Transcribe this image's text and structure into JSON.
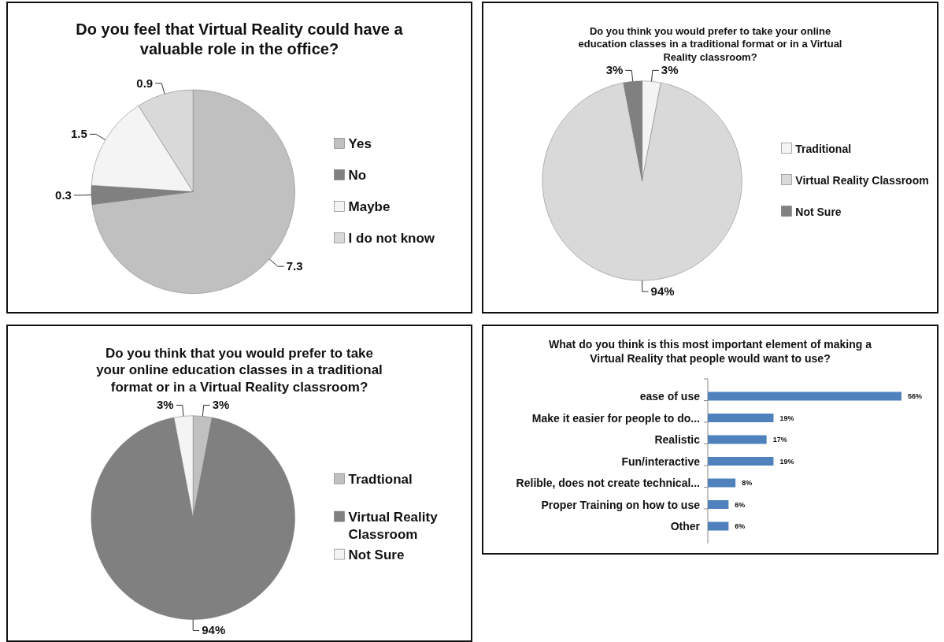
{
  "chart_data": [
    {
      "type": "pie",
      "title": "Do you feel that Virtual Reality could have a valuable role in the office?",
      "categories": [
        "Yes",
        "No",
        "Maybe",
        "I do not know"
      ],
      "values": [
        7.3,
        0.3,
        1.5,
        0.9
      ],
      "colors": [
        "#c0c0c0",
        "#808080",
        "#f4f4f4",
        "#d9d9d9"
      ],
      "data_labels": true,
      "legend": "right"
    },
    {
      "type": "pie",
      "title": "Do you think you would prefer to take your online education classes in a traditional format or in a Virtual Reality classroom?",
      "categories": [
        "Traditional",
        "Virtual Reality Classroom",
        "Not Sure"
      ],
      "values": [
        3,
        94,
        3
      ],
      "value_labels": [
        "3%",
        "94%",
        "3%"
      ],
      "colors": [
        "#f4f4f4",
        "#d9d9d9",
        "#808080"
      ],
      "legend": "right"
    },
    {
      "type": "pie",
      "title": "Do you think that you would prefer to take your online education classes in a traditional format or in a Virtual Reality classroom?",
      "categories": [
        "Tradtional",
        "Virtual Reality Classroom",
        "Not Sure"
      ],
      "values": [
        3,
        94,
        3
      ],
      "value_labels": [
        "3%",
        "94%",
        "3%"
      ],
      "colors": [
        "#c0c0c0",
        "#808080",
        "#f4f4f4"
      ],
      "legend": "right"
    },
    {
      "type": "bar",
      "orientation": "horizontal",
      "title": "What do you think is this most important element of making a Virtual Reality that people would want to use?",
      "categories": [
        "ease of use",
        "Make it easier for people to do...",
        "Realistic",
        "Fun/interactive",
        "Relible, does not create technical...",
        "Proper Training on how to use",
        "Other"
      ],
      "values": [
        56,
        19,
        17,
        19,
        8,
        6,
        6
      ],
      "value_labels": [
        "56%",
        "19%",
        "17%",
        "19%",
        "8%",
        "6%",
        "6%"
      ],
      "color": "#4f81bd"
    }
  ]
}
